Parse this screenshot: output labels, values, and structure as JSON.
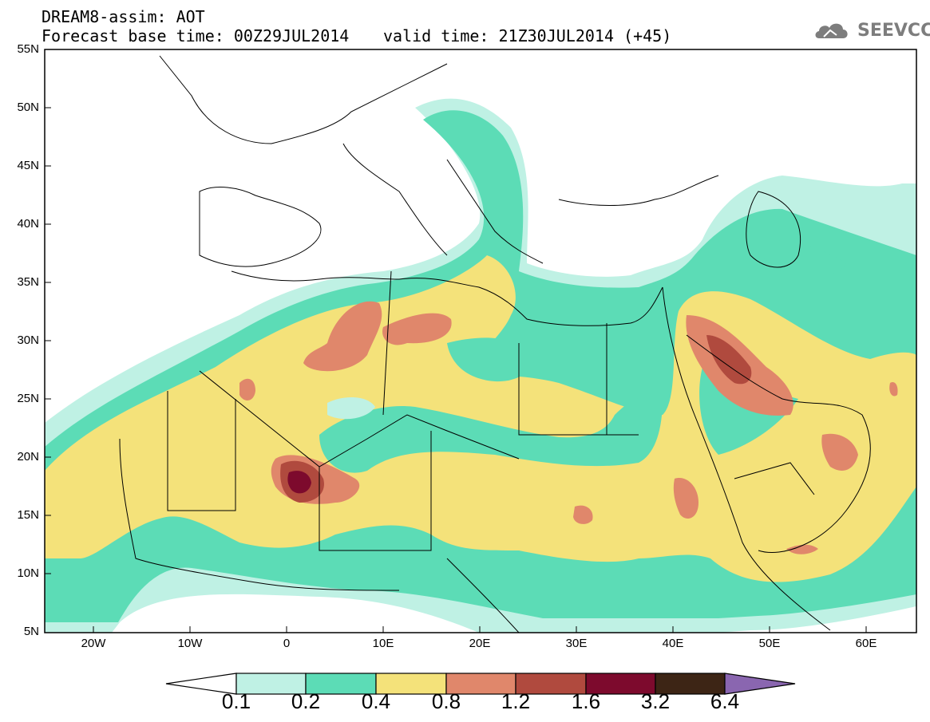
{
  "header": {
    "title_line1": "DREAM8-assim: AOT",
    "title_line2": "Forecast base time: 00Z29JUL2014",
    "valid_time": "valid time: 21Z30JUL2014 (+45)",
    "logo_text": "SEEVCCC",
    "logo_icon": "cloud-icon"
  },
  "map": {
    "lat_labels": [
      "55N",
      "50N",
      "45N",
      "40N",
      "35N",
      "30N",
      "25N",
      "20N",
      "15N",
      "10N",
      "5N"
    ],
    "lon_labels": [
      "20W",
      "10W",
      "0",
      "10E",
      "20E",
      "30E",
      "40E",
      "50E",
      "60E"
    ],
    "lon_range": [
      -25,
      65
    ],
    "lat_range": [
      5,
      55
    ]
  },
  "colorbar": {
    "labels": [
      "0.1",
      "0.2",
      "0.4",
      "0.8",
      "1.2",
      "1.6",
      "3.2",
      "6.4"
    ],
    "colors": [
      "#bff1e4",
      "#5cdcb6",
      "#f4e27a",
      "#e0876b",
      "#b04a3e",
      "#7d0a2d",
      "#3d2515",
      "#8a66b0"
    ]
  },
  "colors": {
    "c01": "#bff1e4",
    "c02": "#5cdcb6",
    "c04": "#f4e27a",
    "c08": "#e0876b",
    "c12": "#b04a3e",
    "c16": "#7d0a2d",
    "logo": "#7d7d7d"
  }
}
